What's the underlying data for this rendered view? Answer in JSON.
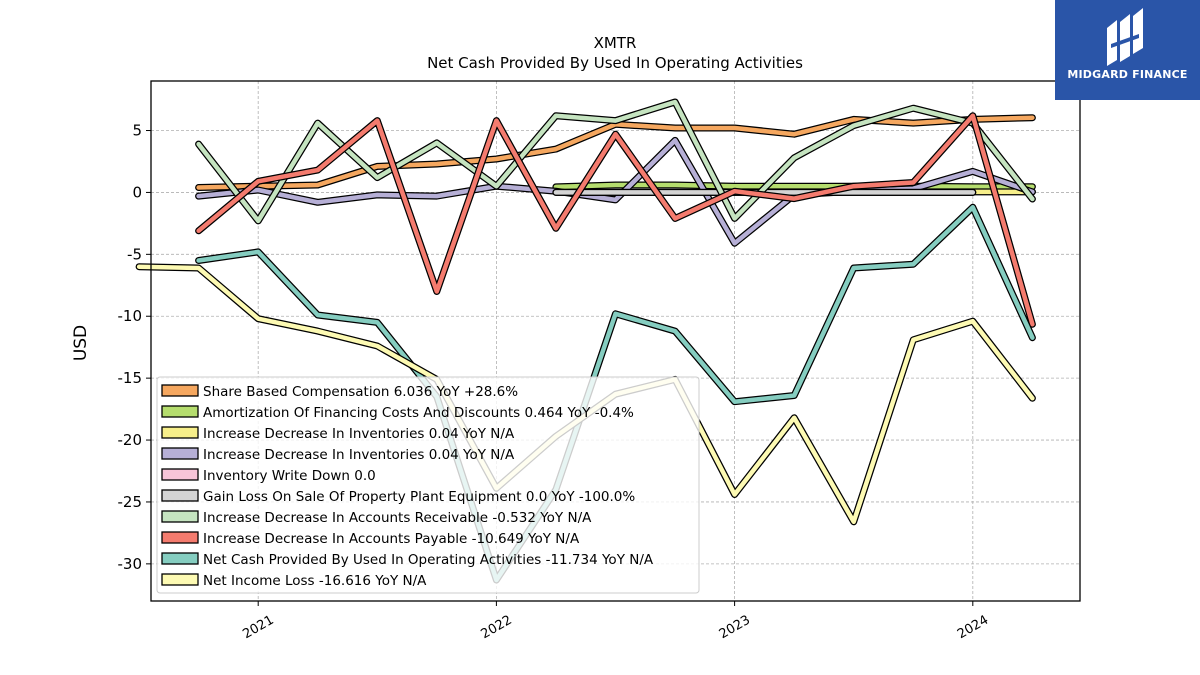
{
  "brand": {
    "name": "MIDGARD FINANCE",
    "bg_color": "#2a55a8"
  },
  "chart_data": {
    "type": "line",
    "title": "XMTR",
    "subtitle": "Net Cash Provided By Used In Operating Activities",
    "ylabel": "USD",
    "xlabel": "",
    "ylim": [
      -33,
      9
    ],
    "xlim": [
      2020.55,
      2024.45
    ],
    "yticks": [
      5,
      0,
      -5,
      -10,
      -15,
      -20,
      -25,
      -30
    ],
    "xticks": [
      2021,
      2022,
      2023,
      2024
    ],
    "grid": true,
    "legend_position": "lower-left",
    "series": [
      {
        "name": "Share Based Compensation",
        "legend": "Share Based Compensation  6.036 YoY +28.6%",
        "color": "#f5a75f",
        "x": [
          2020.75,
          2021.0,
          2021.25,
          2021.5,
          2021.75,
          2022.0,
          2022.25,
          2022.5,
          2022.75,
          2023.0,
          2023.25,
          2023.5,
          2023.75,
          2024.0,
          2024.25
        ],
        "y": [
          0.4,
          0.5,
          0.6,
          2.1,
          2.3,
          2.7,
          3.5,
          5.5,
          5.2,
          5.2,
          4.7,
          5.9,
          5.6,
          5.9,
          6.036
        ]
      },
      {
        "name": "Amortization Of Financing Costs And Discounts",
        "legend": "Amortization Of Financing Costs And Discounts  0.464 YoY -0.4%",
        "color": "#b5dd6e",
        "x": [
          2022.25,
          2022.5,
          2022.75,
          2023.0,
          2023.25,
          2023.5,
          2023.75,
          2024.0,
          2024.25
        ],
        "y": [
          0.45,
          0.6,
          0.6,
          0.5,
          0.5,
          0.5,
          0.5,
          0.46,
          0.464
        ]
      },
      {
        "name": "Increase Decrease In Inventories",
        "legend": "Increase Decrease In Inventories  0.04 YoY N/A",
        "color": "#f7ef8a",
        "x": [
          2023.0,
          2023.25,
          2023.5,
          2023.75,
          2024.0,
          2024.25
        ],
        "y": [
          0.04,
          0.04,
          0.04,
          0.04,
          0.04,
          0.04
        ]
      },
      {
        "name": "Increase Decrease In Inventories",
        "legend": "Increase Decrease In Inventories  0.04 YoY N/A",
        "color": "#b6afd6",
        "x": [
          2020.75,
          2021.0,
          2021.25,
          2021.5,
          2021.75,
          2022.0,
          2022.25,
          2022.5,
          2022.75,
          2023.0,
          2023.25,
          2023.5,
          2023.75,
          2024.0,
          2024.25
        ],
        "y": [
          -0.3,
          0.2,
          -0.8,
          -0.2,
          -0.3,
          0.5,
          0.1,
          -0.6,
          4.2,
          -4.1,
          -0.2,
          0.1,
          0.3,
          1.7,
          0.04
        ]
      },
      {
        "name": "Inventory Write Down",
        "legend": "Inventory Write Down  0.0",
        "color": "#f7c4d8",
        "x": [
          2022.25,
          2022.5,
          2022.75,
          2023.0,
          2023.25,
          2023.5,
          2023.75,
          2024.0
        ],
        "y": [
          0,
          0,
          0,
          0,
          0,
          0,
          0,
          0
        ]
      },
      {
        "name": "Gain Loss On Sale Of Property Plant Equipment",
        "legend": "Gain Loss On Sale Of Property Plant Equipment  0.0 YoY -100.0%",
        "color": "#d4d4d4",
        "x": [
          2022.25,
          2022.5,
          2022.75,
          2023.0,
          2023.25,
          2023.5,
          2023.75,
          2024.0
        ],
        "y": [
          0,
          0,
          0,
          0,
          0,
          0,
          0,
          0
        ]
      },
      {
        "name": "Increase Decrease In Accounts Receivable",
        "legend": "Increase Decrease In Accounts Receivable  -0.532 YoY N/A",
        "color": "#c5e4c0",
        "x": [
          2020.75,
          2021.0,
          2021.25,
          2021.5,
          2021.75,
          2022.0,
          2022.25,
          2022.5,
          2022.75,
          2023.0,
          2023.25,
          2023.5,
          2023.75,
          2024.0,
          2024.25
        ],
        "y": [
          3.9,
          -2.3,
          5.6,
          1.2,
          4.0,
          0.5,
          6.2,
          5.8,
          7.3,
          -2.1,
          2.8,
          5.4,
          6.8,
          5.6,
          -0.532
        ]
      },
      {
        "name": "Increase Decrease In Accounts Payable",
        "legend": "Increase Decrease In Accounts Payable  -10.649 YoY N/A",
        "color": "#f47b6e",
        "x": [
          2020.75,
          2021.0,
          2021.25,
          2021.5,
          2021.75,
          2022.0,
          2022.25,
          2022.5,
          2022.75,
          2023.0,
          2023.25,
          2023.5,
          2023.75,
          2024.0,
          2024.25
        ],
        "y": [
          -3.1,
          0.9,
          1.8,
          5.8,
          -8.0,
          5.8,
          -2.9,
          4.7,
          -2.1,
          0.1,
          -0.5,
          0.5,
          0.8,
          6.2,
          -10.649
        ]
      },
      {
        "name": "Net Cash Provided By Used In Operating Activities",
        "legend": "Net Cash Provided By Used In Operating Activities  -11.734 YoY N/A",
        "color": "#85cdc0",
        "x": [
          2020.75,
          2021.0,
          2021.25,
          2021.5,
          2021.75,
          2022.0,
          2022.25,
          2022.5,
          2022.75,
          2023.0,
          2023.25,
          2023.5,
          2023.75,
          2024.0,
          2024.25
        ],
        "y": [
          -5.5,
          -4.8,
          -9.9,
          -10.5,
          -16.5,
          -31.3,
          -24.0,
          -9.8,
          -11.2,
          -16.9,
          -16.4,
          -6.1,
          -5.8,
          -1.2,
          -11.734
        ]
      },
      {
        "name": "Net Income Loss",
        "legend": "Net Income Loss  -16.616 YoY N/A",
        "color": "#fdfab3",
        "x": [
          2020.5,
          2020.75,
          2021.0,
          2021.25,
          2021.5,
          2021.75,
          2022.0,
          2022.25,
          2022.5,
          2022.75,
          2023.0,
          2023.25,
          2023.5,
          2023.75,
          2024.0,
          2024.25
        ],
        "y": [
          -6.0,
          -6.1,
          -10.2,
          -11.2,
          -12.4,
          -15.1,
          -23.9,
          -19.7,
          -16.3,
          -15.1,
          -24.4,
          -18.2,
          -26.6,
          -11.9,
          -10.4,
          -16.616
        ]
      }
    ]
  }
}
